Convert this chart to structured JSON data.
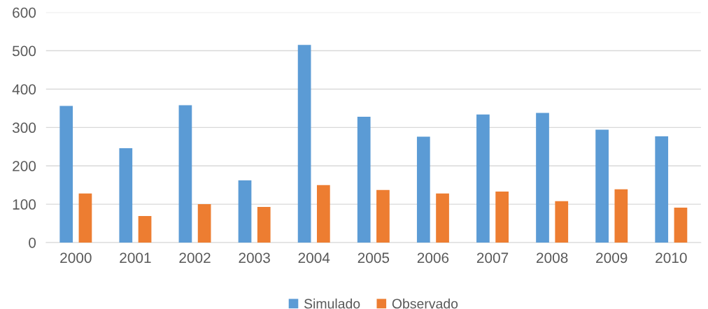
{
  "chart_data": {
    "type": "bar",
    "categories": [
      "2000",
      "2001",
      "2002",
      "2003",
      "2004",
      "2005",
      "2006",
      "2007",
      "2008",
      "2009",
      "2010"
    ],
    "series": [
      {
        "name": "Simulado",
        "color": "#5b9bd5",
        "values": [
          356,
          246,
          358,
          162,
          515,
          328,
          276,
          334,
          338,
          294,
          277
        ]
      },
      {
        "name": "Observado",
        "color": "#ed7d31",
        "values": [
          128,
          69,
          100,
          93,
          150,
          137,
          128,
          133,
          108,
          139,
          91
        ]
      }
    ],
    "ylim": [
      0,
      600
    ],
    "yticks": [
      0,
      100,
      200,
      300,
      400,
      500,
      600
    ],
    "grid": "y",
    "legend": "bottom"
  }
}
